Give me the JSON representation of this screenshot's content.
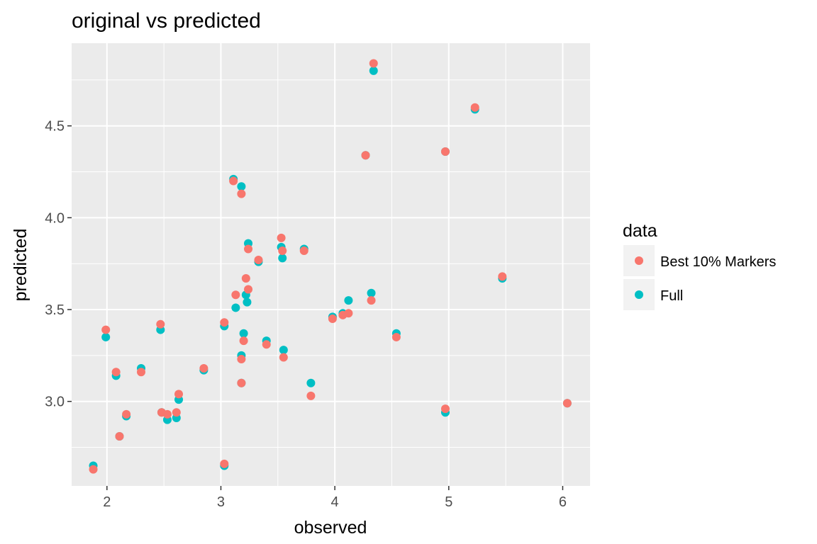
{
  "chart_data": {
    "type": "scatter",
    "title": "original vs predicted",
    "xlabel": "observed",
    "ylabel": "predicted",
    "xlim": [
      1.69,
      6.24
    ],
    "ylim": [
      2.54,
      4.95
    ],
    "x_ticks": [
      2,
      3,
      4,
      5,
      6
    ],
    "y_ticks": [
      3.0,
      3.5,
      4.0,
      4.5
    ],
    "x_tick_labels": [
      "2",
      "3",
      "4",
      "5",
      "6"
    ],
    "y_tick_labels": [
      "3.0",
      "3.5",
      "4.0",
      "4.5"
    ],
    "grid": true,
    "legend": {
      "title": "data",
      "position": "right",
      "entries": [
        "Best 10% Markers",
        "Full"
      ]
    },
    "series": [
      {
        "name": "Full",
        "color": "#00BFC4",
        "points": [
          [
            1.88,
            2.65
          ],
          [
            1.99,
            3.35
          ],
          [
            2.08,
            3.14
          ],
          [
            2.11,
            2.81
          ],
          [
            2.17,
            2.92
          ],
          [
            2.3,
            3.18
          ],
          [
            2.47,
            3.39
          ],
          [
            2.48,
            2.94
          ],
          [
            2.53,
            2.9
          ],
          [
            2.61,
            2.91
          ],
          [
            2.63,
            3.01
          ],
          [
            2.85,
            3.17
          ],
          [
            3.03,
            2.65
          ],
          [
            3.03,
            3.41
          ],
          [
            3.11,
            4.21
          ],
          [
            3.13,
            3.51
          ],
          [
            3.18,
            4.17
          ],
          [
            3.18,
            3.1
          ],
          [
            3.18,
            3.25
          ],
          [
            3.2,
            3.37
          ],
          [
            3.22,
            3.58
          ],
          [
            3.23,
            3.54
          ],
          [
            3.24,
            3.86
          ],
          [
            3.33,
            3.76
          ],
          [
            3.4,
            3.33
          ],
          [
            3.53,
            3.84
          ],
          [
            3.54,
            3.78
          ],
          [
            3.55,
            3.28
          ],
          [
            3.73,
            3.83
          ],
          [
            3.79,
            3.1
          ],
          [
            3.98,
            3.46
          ],
          [
            4.07,
            3.48
          ],
          [
            4.12,
            3.55
          ],
          [
            4.27,
            4.34
          ],
          [
            4.32,
            3.59
          ],
          [
            4.34,
            4.8
          ],
          [
            4.54,
            3.37
          ],
          [
            4.97,
            2.94
          ],
          [
            4.97,
            4.36
          ],
          [
            5.23,
            4.59
          ],
          [
            5.47,
            3.67
          ],
          [
            6.04,
            2.99
          ]
        ]
      },
      {
        "name": "Best 10% Markers",
        "color": "#F8766D",
        "points": [
          [
            1.88,
            2.63
          ],
          [
            1.99,
            3.39
          ],
          [
            2.08,
            3.16
          ],
          [
            2.11,
            2.81
          ],
          [
            2.17,
            2.93
          ],
          [
            2.3,
            3.16
          ],
          [
            2.47,
            3.42
          ],
          [
            2.48,
            2.94
          ],
          [
            2.53,
            2.93
          ],
          [
            2.61,
            2.94
          ],
          [
            2.63,
            3.04
          ],
          [
            2.85,
            3.18
          ],
          [
            3.03,
            2.66
          ],
          [
            3.03,
            3.43
          ],
          [
            3.11,
            4.2
          ],
          [
            3.13,
            3.58
          ],
          [
            3.18,
            4.13
          ],
          [
            3.18,
            3.1
          ],
          [
            3.18,
            3.23
          ],
          [
            3.2,
            3.33
          ],
          [
            3.22,
            3.67
          ],
          [
            3.24,
            3.61
          ],
          [
            3.24,
            3.83
          ],
          [
            3.33,
            3.77
          ],
          [
            3.4,
            3.31
          ],
          [
            3.53,
            3.89
          ],
          [
            3.54,
            3.82
          ],
          [
            3.55,
            3.24
          ],
          [
            3.73,
            3.82
          ],
          [
            3.79,
            3.03
          ],
          [
            3.98,
            3.45
          ],
          [
            4.07,
            3.47
          ],
          [
            4.12,
            3.48
          ],
          [
            4.27,
            4.34
          ],
          [
            4.32,
            3.55
          ],
          [
            4.34,
            4.84
          ],
          [
            4.54,
            3.35
          ],
          [
            4.97,
            2.96
          ],
          [
            4.97,
            4.36
          ],
          [
            5.23,
            4.6
          ],
          [
            5.47,
            3.68
          ],
          [
            6.04,
            2.99
          ]
        ]
      }
    ]
  }
}
